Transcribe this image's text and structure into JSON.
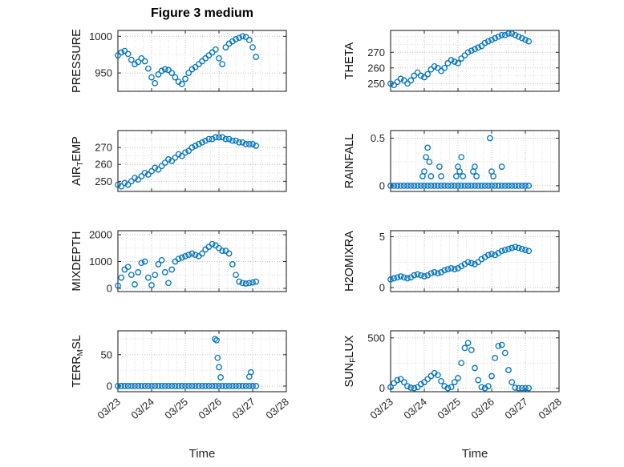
{
  "figure_title": "Figure 3 medium",
  "colors": {
    "marker": "#0072BD",
    "axis": "#262626",
    "text": "#262626",
    "grid_major": "#c2c2c2",
    "grid_minor": "#dedede"
  },
  "chart_data": {
    "type": "scatter",
    "layout": "4x2-subplots",
    "x_label": "Time",
    "x_lim": [
      0,
      5
    ],
    "x_minor_step": 0.25,
    "x_major_ticks": [
      0,
      1,
      2,
      3,
      4,
      5
    ],
    "x_tick_labels": [
      "03/23",
      "03/24",
      "03/25",
      "03/26",
      "03/27",
      "03/28"
    ],
    "t_days": [
      0,
      0.1,
      0.2,
      0.3,
      0.4,
      0.5,
      0.6,
      0.7,
      0.8,
      0.9,
      1.0,
      1.1,
      1.2,
      1.3,
      1.4,
      1.5,
      1.6,
      1.7,
      1.8,
      1.9,
      2.0,
      2.1,
      2.2,
      2.3,
      2.4,
      2.5,
      2.6,
      2.7,
      2.8,
      2.9,
      3.0,
      3.1,
      3.2,
      3.3,
      3.4,
      3.5,
      3.6,
      3.7,
      3.8,
      3.9,
      4.0,
      4.1
    ],
    "subplots": [
      {
        "name": "pressure",
        "ylabel_segments": [
          {
            "text": "PRESSURE"
          }
        ],
        "yticks": [
          950,
          1000
        ],
        "ylim": [
          925,
          1008
        ],
        "ygrid": [
          925,
          950,
          975,
          1000
        ],
        "values": [
          974,
          978,
          980,
          976,
          968,
          962,
          965,
          970,
          966,
          956,
          944,
          936,
          948,
          953,
          955,
          954,
          950,
          944,
          938,
          935,
          942,
          950,
          955,
          958,
          962,
          966,
          970,
          974,
          978,
          982,
          970,
          962,
          985,
          990,
          993,
          996,
          998,
          1000,
          999,
          995,
          985,
          972
        ]
      },
      {
        "name": "theta",
        "ylabel_segments": [
          {
            "text": "THETA"
          }
        ],
        "yticks": [
          250,
          260,
          270
        ],
        "ylim": [
          245,
          284
        ],
        "ygrid": [
          250,
          255,
          260,
          265,
          270,
          275,
          280
        ],
        "values": [
          250,
          249,
          251,
          253,
          252,
          250,
          252,
          255,
          257,
          255,
          254,
          256,
          259,
          261,
          260,
          258,
          260,
          263,
          265,
          264,
          263,
          266,
          268,
          270,
          271,
          272,
          273,
          274,
          276,
          277,
          278,
          279,
          280,
          281,
          281,
          282,
          282,
          281,
          280,
          279,
          278,
          277
        ]
      },
      {
        "name": "air-temp",
        "ylabel_segments": [
          {
            "text": "AIR"
          },
          {
            "text": "T",
            "sub": true
          },
          {
            "text": "EMP"
          }
        ],
        "yticks": [
          250,
          260,
          270
        ],
        "ylim": [
          244,
          280
        ],
        "ygrid": [
          245,
          250,
          255,
          260,
          265,
          270,
          275
        ],
        "values": [
          248,
          247,
          249,
          248,
          250,
          252,
          251,
          253,
          255,
          254,
          256,
          258,
          257,
          259,
          261,
          263,
          262,
          264,
          266,
          265,
          267,
          268,
          270,
          271,
          272,
          273,
          274,
          275,
          275,
          276,
          276,
          276,
          275,
          275,
          274,
          274,
          273,
          273,
          272,
          272,
          272,
          271
        ]
      },
      {
        "name": "rainfall",
        "ylabel_segments": [
          {
            "text": "RAINFALL"
          }
        ],
        "yticks": [
          0,
          0.5
        ],
        "ylim": [
          -0.06,
          0.58
        ],
        "ygrid": [
          0,
          0.25,
          0.5
        ],
        "values": [
          0,
          0,
          0,
          0,
          0,
          0,
          0,
          0,
          0,
          0,
          0,
          0,
          0,
          0,
          0,
          0,
          0,
          0,
          0,
          0,
          0,
          0,
          0,
          0,
          0,
          0,
          0,
          0,
          0,
          0,
          0,
          0,
          0,
          0,
          0,
          0,
          0,
          0,
          0,
          0,
          0,
          0
        ],
        "extra_points": [
          [
            0.95,
            0.1
          ],
          [
            1.0,
            0.15
          ],
          [
            1.05,
            0.3
          ],
          [
            1.1,
            0.4
          ],
          [
            1.15,
            0.25
          ],
          [
            1.2,
            0.1
          ],
          [
            1.45,
            0.2
          ],
          [
            1.5,
            0.1
          ],
          [
            1.95,
            0.1
          ],
          [
            2.0,
            0.2
          ],
          [
            2.05,
            0.15
          ],
          [
            2.1,
            0.3
          ],
          [
            2.15,
            0.1
          ],
          [
            2.45,
            0.15
          ],
          [
            2.5,
            0.2
          ],
          [
            2.55,
            0.1
          ],
          [
            2.95,
            0.5
          ],
          [
            3.0,
            0.15
          ],
          [
            3.05,
            0.1
          ],
          [
            3.3,
            0.2
          ]
        ]
      },
      {
        "name": "mixdepth",
        "ylabel_segments": [
          {
            "text": "MIXDEPTH"
          }
        ],
        "yticks": [
          0,
          1000,
          2000
        ],
        "ylim": [
          -120,
          2150
        ],
        "ygrid": [
          0,
          500,
          1000,
          1500,
          2000
        ],
        "values": [
          100,
          400,
          700,
          800,
          500,
          150,
          600,
          950,
          1000,
          400,
          120,
          500,
          900,
          1050,
          600,
          200,
          700,
          1000,
          1100,
          1150,
          1200,
          1250,
          1300,
          1250,
          1200,
          1300,
          1450,
          1550,
          1650,
          1600,
          1500,
          1400,
          1400,
          1300,
          900,
          500,
          250,
          200,
          180,
          200,
          220,
          250
        ]
      },
      {
        "name": "h2omixra",
        "ylabel_segments": [
          {
            "text": "H2OMIXRA"
          }
        ],
        "yticks": [
          0,
          5
        ],
        "ylim": [
          -0.4,
          5.6
        ],
        "ygrid": [
          0,
          2.5,
          5
        ],
        "values": [
          0.8,
          0.9,
          1.0,
          1.1,
          1.0,
          0.9,
          1.0,
          1.2,
          1.3,
          1.2,
          1.1,
          1.2,
          1.4,
          1.5,
          1.4,
          1.5,
          1.7,
          1.8,
          1.9,
          1.8,
          1.9,
          2.1,
          2.3,
          2.5,
          2.4,
          2.3,
          2.5,
          2.8,
          3.0,
          3.2,
          3.3,
          3.2,
          3.4,
          3.6,
          3.7,
          3.8,
          3.9,
          4.0,
          3.9,
          3.8,
          3.7,
          3.6
        ]
      },
      {
        "name": "terr-msl",
        "ylabel_segments": [
          {
            "text": "TERR"
          },
          {
            "text": "M",
            "sub": true
          },
          {
            "text": "SL"
          }
        ],
        "yticks": [
          0,
          50
        ],
        "ylim": [
          -9,
          88
        ],
        "ygrid": [
          0,
          25,
          50,
          75
        ],
        "values": [
          0,
          0,
          0,
          0,
          0,
          0,
          0,
          0,
          0,
          0,
          0,
          0,
          0,
          0,
          0,
          0,
          0,
          0,
          0,
          0,
          0,
          0,
          0,
          0,
          0,
          0,
          0,
          0,
          0,
          0,
          0,
          0,
          0,
          0,
          0,
          0,
          0,
          0,
          0,
          0,
          0,
          0
        ],
        "extra_points": [
          [
            2.88,
            75
          ],
          [
            2.93,
            73
          ],
          [
            2.96,
            45
          ],
          [
            3.0,
            30
          ],
          [
            3.05,
            14
          ],
          [
            3.9,
            15
          ],
          [
            3.95,
            22
          ]
        ]
      },
      {
        "name": "sun-flux",
        "ylabel_segments": [
          {
            "text": "SUN"
          },
          {
            "text": "F",
            "sub": true
          },
          {
            "text": "LUX"
          }
        ],
        "yticks": [
          0,
          500
        ],
        "ylim": [
          -35,
          570
        ],
        "ygrid": [
          0,
          250,
          500
        ],
        "values": [
          10,
          50,
          80,
          90,
          60,
          20,
          5,
          0,
          10,
          40,
          60,
          90,
          120,
          150,
          130,
          70,
          20,
          0,
          10,
          60,
          100,
          250,
          400,
          450,
          380,
          200,
          80,
          10,
          0,
          20,
          120,
          300,
          420,
          430,
          350,
          180,
          60,
          5,
          0,
          0,
          0,
          0
        ]
      }
    ]
  }
}
